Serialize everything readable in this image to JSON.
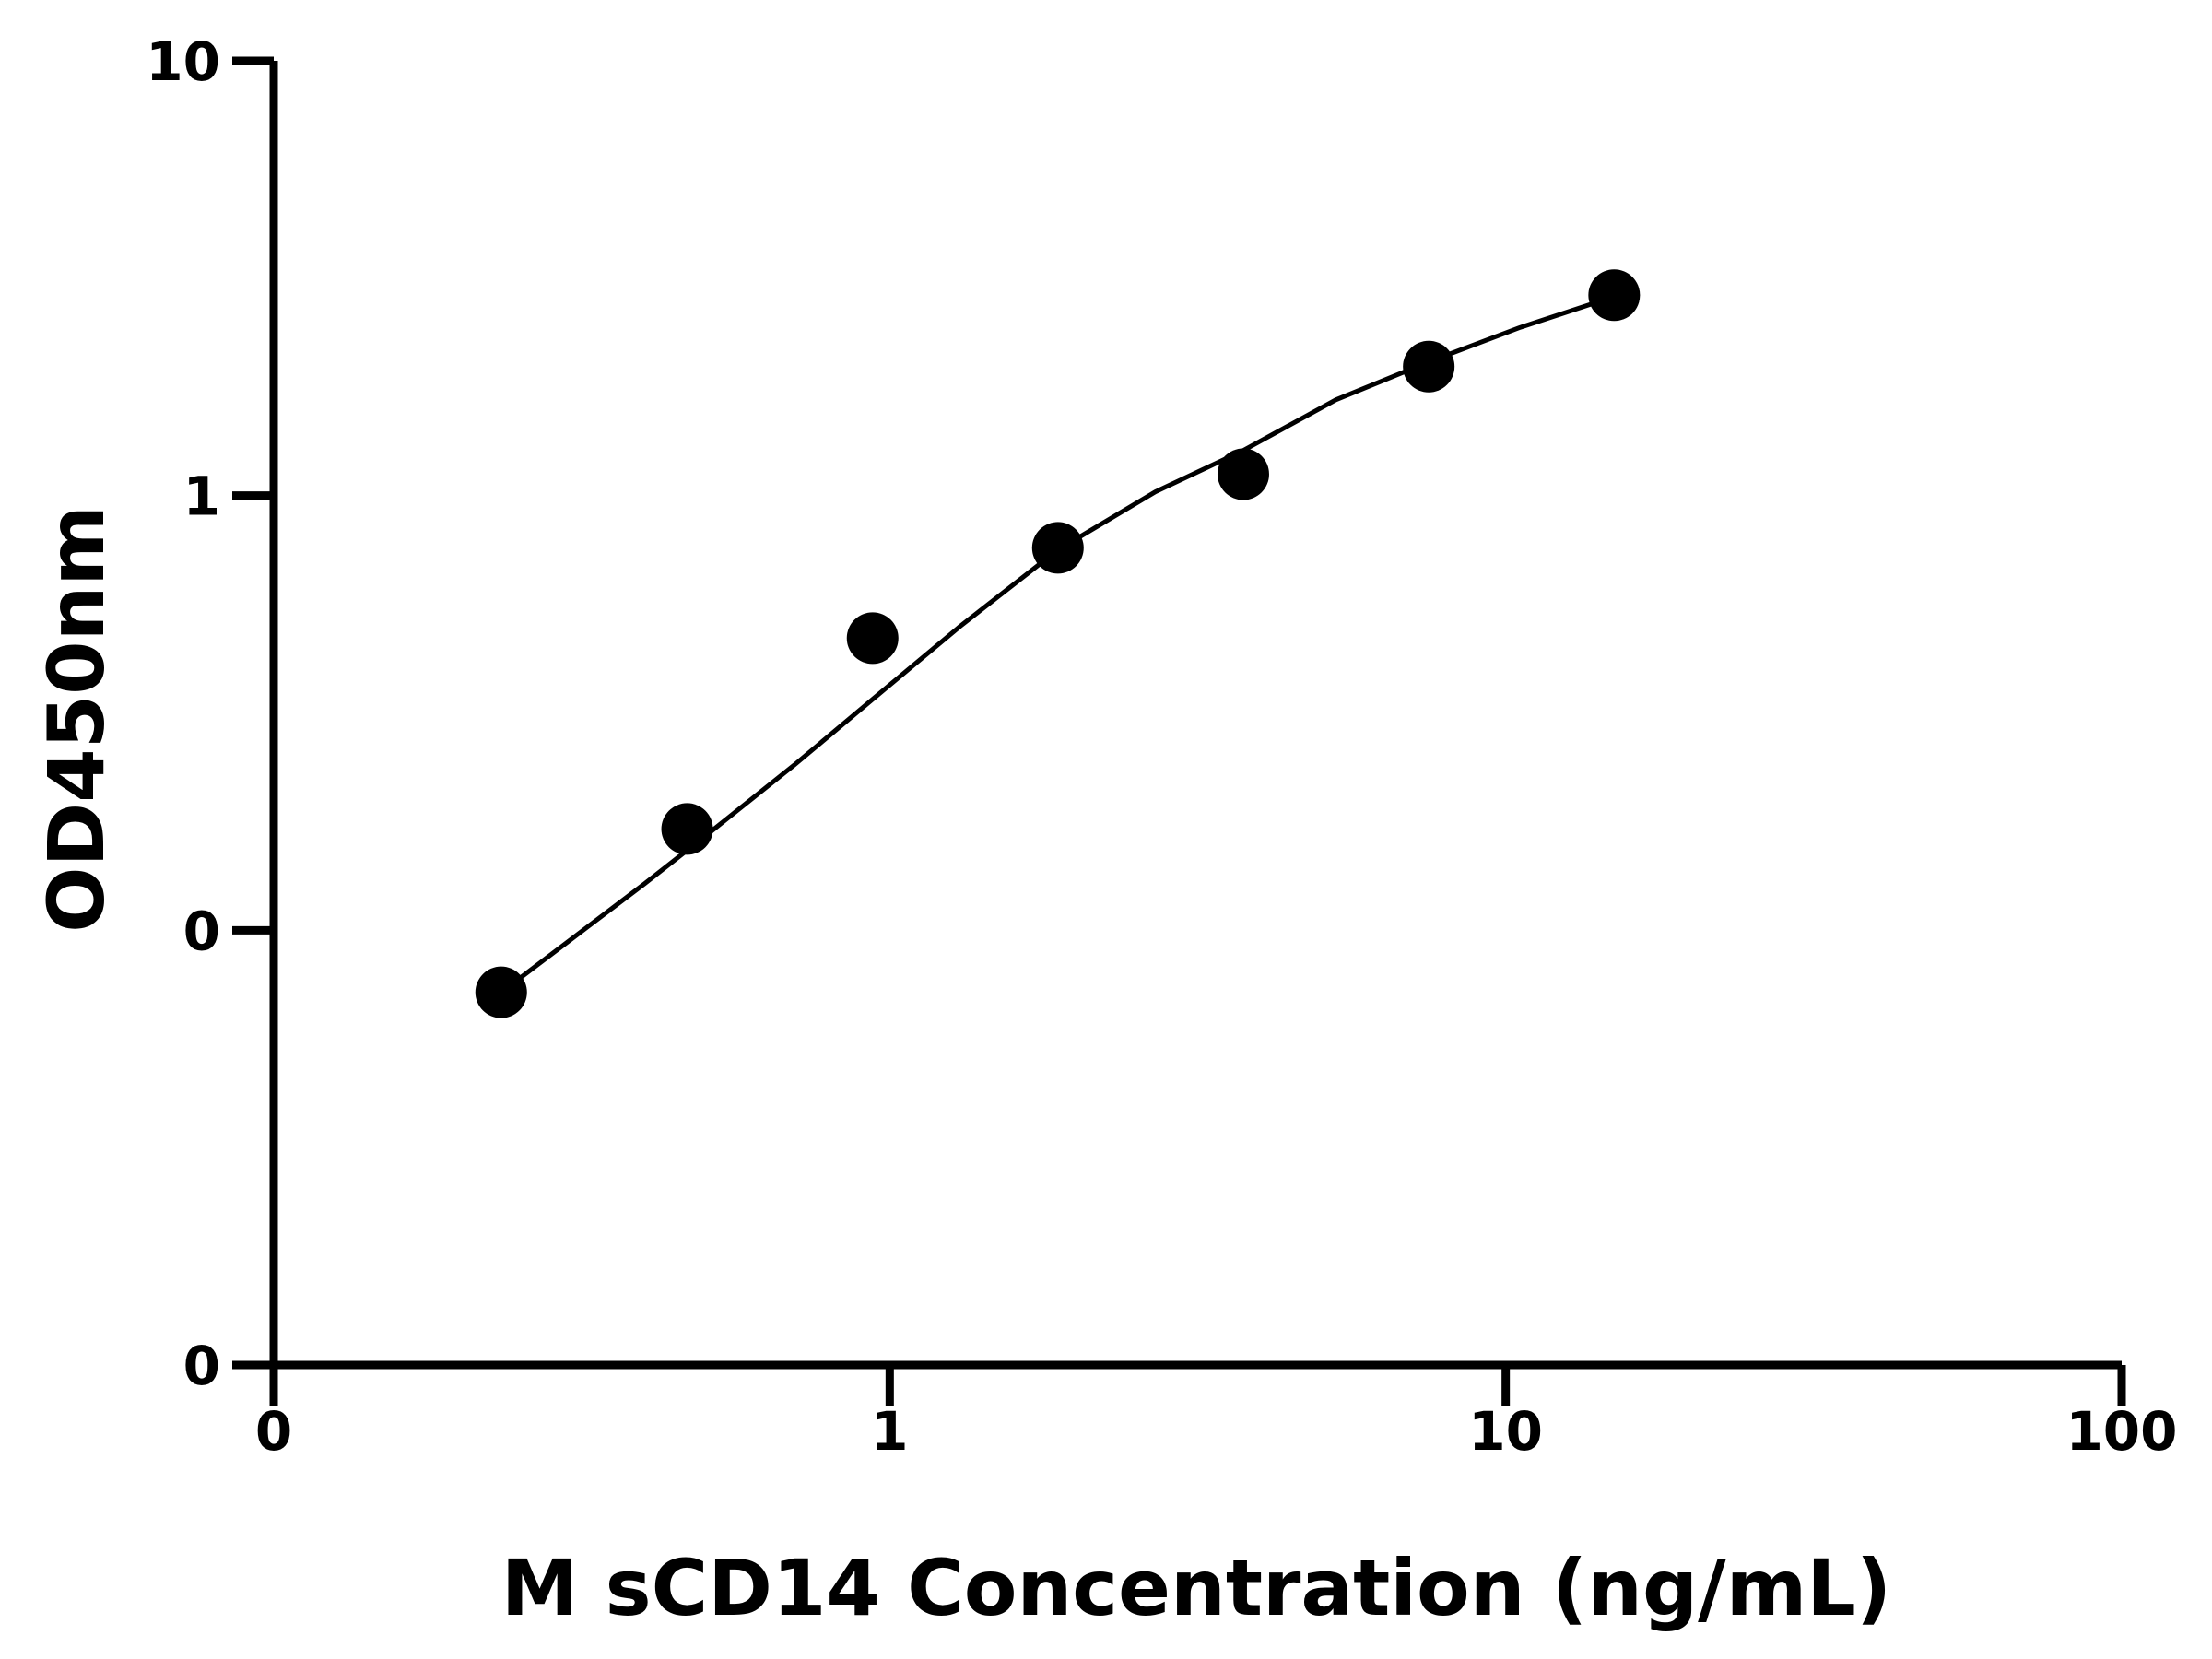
{
  "chart_data": {
    "type": "scatter",
    "xlabel": "M sCD14 Concentration (ng/mL)",
    "ylabel": "OD450nm",
    "x_scale": "log",
    "y_scale": "log",
    "xlim": [
      0.1,
      100
    ],
    "ylim": [
      0.01,
      10
    ],
    "x_ticks": [
      {
        "value": 0.1,
        "label": "0"
      },
      {
        "value": 1,
        "label": "1"
      },
      {
        "value": 10,
        "label": "10"
      },
      {
        "value": 100,
        "label": "100"
      }
    ],
    "y_ticks": [
      {
        "value": 0.01,
        "label": "0"
      },
      {
        "value": 0.1,
        "label": "0"
      },
      {
        "value": 1,
        "label": "1"
      },
      {
        "value": 10,
        "label": "10"
      }
    ],
    "grid": false,
    "color": "#000000",
    "series": [
      {
        "points": [
          {
            "x": 0.234,
            "y": 0.072
          },
          {
            "x": 0.469,
            "y": 0.171
          },
          {
            "x": 0.938,
            "y": 0.47
          },
          {
            "x": 1.875,
            "y": 0.758
          },
          {
            "x": 3.75,
            "y": 1.12
          },
          {
            "x": 7.5,
            "y": 1.98
          },
          {
            "x": 15,
            "y": 2.89
          }
        ]
      }
    ],
    "fit_curve": {
      "x": [
        0.234,
        0.3,
        0.4,
        0.5,
        0.7,
        0.938,
        1.3,
        1.875,
        2.7,
        3.75,
        5.3,
        7.5,
        10.5,
        15
      ],
      "y": [
        0.072,
        0.094,
        0.128,
        0.164,
        0.24,
        0.34,
        0.5,
        0.75,
        1.02,
        1.27,
        1.66,
        2.03,
        2.43,
        2.87
      ]
    }
  }
}
